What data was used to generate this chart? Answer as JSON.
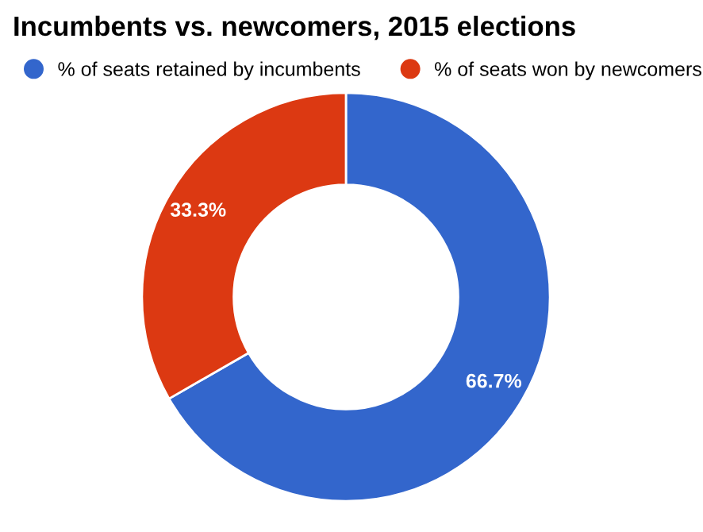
{
  "chart_data": {
    "type": "donut",
    "title": "Incumbents vs. newcomers, 2015 elections",
    "categories": [
      "% of seats retained by incumbents",
      "% of seats won by newcomers"
    ],
    "values": [
      66.7,
      33.3
    ],
    "colors": [
      "#3366cc",
      "#dc3912"
    ],
    "value_labels": [
      "66.7%",
      "33.3%"
    ],
    "legend": "top"
  }
}
